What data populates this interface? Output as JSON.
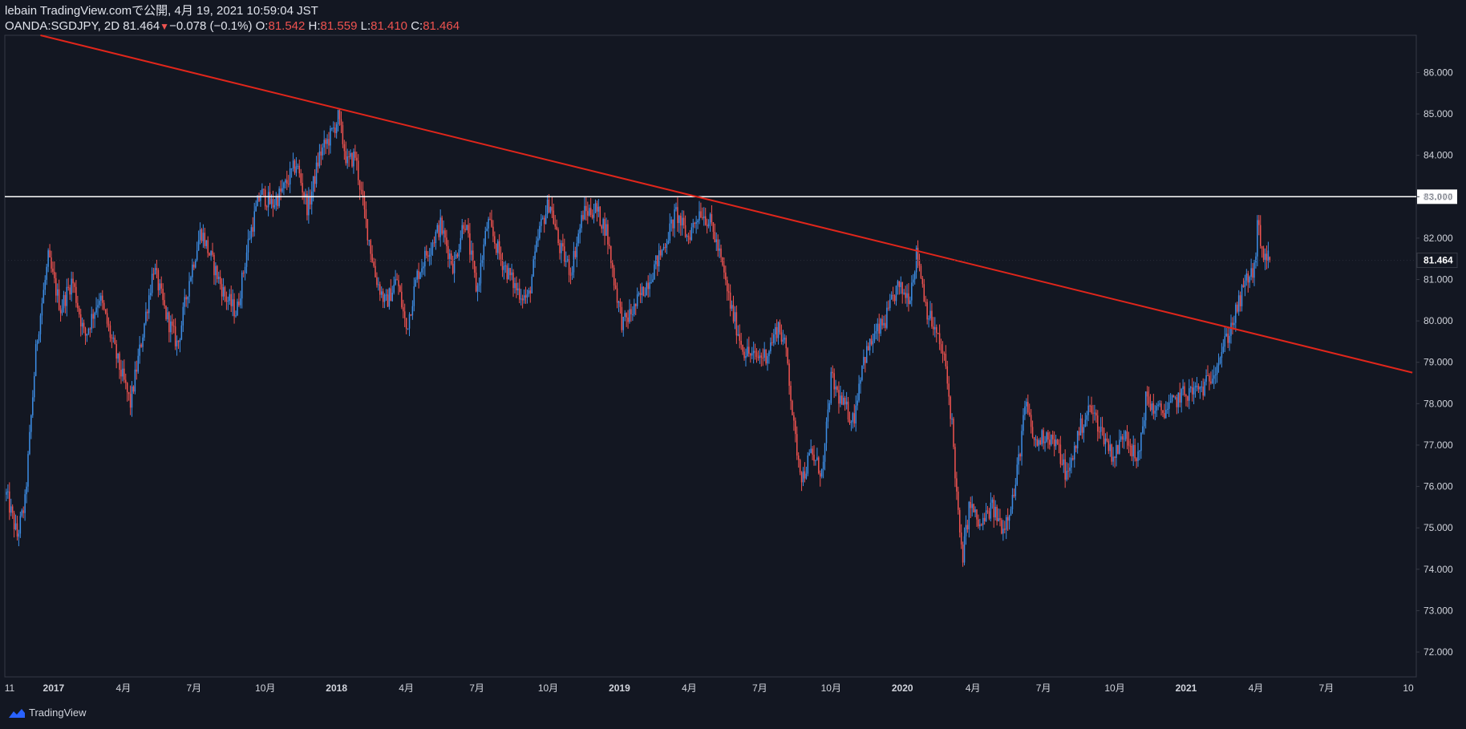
{
  "header": {
    "line1": "lebain TradingView.comで公開, 4月 19, 2021 10:59:04 JST",
    "symbol": "OANDA:SGDJPY, 2D",
    "last": "81.464",
    "change": "−0.078 (−0.1%)",
    "o_label": "O:",
    "o_value": "81.542",
    "h_label": "H:",
    "h_value": "81.559",
    "l_label": "L:",
    "l_value": "81.410",
    "c_label": "C:",
    "c_value": "81.464"
  },
  "footer": {
    "brand": "TradingView",
    "icon": "tradingview-cloud-icon"
  },
  "colors": {
    "background": "#131722",
    "up": "#2962ff",
    "up_candle": "#3d8ee6",
    "down": "#ef5350",
    "trendline": "#e0261b",
    "hline": "#ffffff",
    "axis_text": "#d1d4dc",
    "border": "#363a45"
  },
  "chart_data": {
    "type": "candlestick",
    "ylim": [
      71.4,
      86.9
    ],
    "y_ticks": [
      "86.000",
      "85.000",
      "84.000",
      "83.000",
      "82.000",
      "81.000",
      "80.000",
      "79.000",
      "78.000",
      "77.000",
      "76.000",
      "75.000",
      "74.000",
      "73.000",
      "72.000"
    ],
    "x_ticks": [
      "11",
      "2017",
      "4月",
      "7月",
      "10月",
      "2018",
      "4月",
      "7月",
      "10月",
      "2019",
      "4月",
      "7月",
      "10月",
      "2020",
      "4月",
      "7月",
      "10月",
      "2021",
      "4月",
      "7月",
      "10"
    ],
    "price_labels": [
      {
        "label": "83.000",
        "value": 83.0,
        "kind": "hline"
      },
      {
        "label": "81.464",
        "value": 81.464,
        "kind": "last"
      }
    ],
    "trendline": {
      "label": "descending trendline",
      "from": {
        "date": "2016-12-15",
        "price": 86.9
      },
      "to": {
        "date": "2021-10-20",
        "price": 78.75
      }
    },
    "hline": {
      "price": 83.0
    },
    "close_path": [
      [
        "2016-11-01",
        75.8
      ],
      [
        "2016-11-15",
        74.8
      ],
      [
        "2016-11-25",
        75.6
      ],
      [
        "2016-12-10",
        79.5
      ],
      [
        "2016-12-25",
        81.5
      ],
      [
        "2017-01-10",
        80.3
      ],
      [
        "2017-01-25",
        81.0
      ],
      [
        "2017-02-10",
        79.6
      ],
      [
        "2017-03-01",
        80.6
      ],
      [
        "2017-03-25",
        79.0
      ],
      [
        "2017-04-10",
        78.0
      ],
      [
        "2017-04-25",
        79.6
      ],
      [
        "2017-05-10",
        81.3
      ],
      [
        "2017-05-25",
        80.2
      ],
      [
        "2017-06-10",
        79.4
      ],
      [
        "2017-06-25",
        81.0
      ],
      [
        "2017-07-10",
        82.2
      ],
      [
        "2017-07-25",
        81.4
      ],
      [
        "2017-08-10",
        80.6
      ],
      [
        "2017-08-25",
        80.2
      ],
      [
        "2017-09-10",
        82.0
      ],
      [
        "2017-09-25",
        83.1
      ],
      [
        "2017-10-10",
        82.8
      ],
      [
        "2017-10-25",
        83.2
      ],
      [
        "2017-11-10",
        83.8
      ],
      [
        "2017-11-25",
        82.7
      ],
      [
        "2017-12-10",
        84.0
      ],
      [
        "2017-12-25",
        84.5
      ],
      [
        "2018-01-03",
        84.9
      ],
      [
        "2018-01-15",
        83.8
      ],
      [
        "2018-01-25",
        84.0
      ],
      [
        "2018-02-05",
        82.7
      ],
      [
        "2018-02-20",
        81.1
      ],
      [
        "2018-03-05",
        80.4
      ],
      [
        "2018-03-20",
        81.0
      ],
      [
        "2018-04-01",
        79.8
      ],
      [
        "2018-04-15",
        81.1
      ],
      [
        "2018-05-01",
        81.8
      ],
      [
        "2018-05-15",
        82.3
      ],
      [
        "2018-06-01",
        81.3
      ],
      [
        "2018-06-15",
        82.5
      ],
      [
        "2018-07-01",
        80.7
      ],
      [
        "2018-07-15",
        82.4
      ],
      [
        "2018-08-01",
        81.5
      ],
      [
        "2018-08-20",
        80.8
      ],
      [
        "2018-09-05",
        80.5
      ],
      [
        "2018-09-20",
        82.2
      ],
      [
        "2018-10-03",
        82.9
      ],
      [
        "2018-10-15",
        81.8
      ],
      [
        "2018-10-30",
        81.2
      ],
      [
        "2018-11-15",
        82.6
      ],
      [
        "2018-12-01",
        82.7
      ],
      [
        "2018-12-15",
        82.2
      ],
      [
        "2018-12-25",
        81.0
      ],
      [
        "2019-01-05",
        79.9
      ],
      [
        "2019-01-20",
        80.3
      ],
      [
        "2019-02-05",
        80.9
      ],
      [
        "2019-02-25",
        81.7
      ],
      [
        "2019-03-15",
        82.6
      ],
      [
        "2019-03-30",
        82.0
      ],
      [
        "2019-04-15",
        82.7
      ],
      [
        "2019-04-30",
        82.3
      ],
      [
        "2019-05-10",
        81.6
      ],
      [
        "2019-05-25",
        80.3
      ],
      [
        "2019-06-10",
        79.3
      ],
      [
        "2019-06-25",
        79.1
      ],
      [
        "2019-07-10",
        79.2
      ],
      [
        "2019-07-25",
        79.9
      ],
      [
        "2019-08-05",
        79.2
      ],
      [
        "2019-08-15",
        77.2
      ],
      [
        "2019-08-25",
        76.2
      ],
      [
        "2019-09-05",
        76.8
      ],
      [
        "2019-09-20",
        76.3
      ],
      [
        "2019-10-01",
        78.6
      ],
      [
        "2019-10-15",
        78.0
      ],
      [
        "2019-10-30",
        77.6
      ],
      [
        "2019-11-10",
        79.0
      ],
      [
        "2019-11-25",
        79.6
      ],
      [
        "2019-12-10",
        80.0
      ],
      [
        "2019-12-25",
        80.8
      ],
      [
        "2020-01-10",
        80.6
      ],
      [
        "2020-01-20",
        81.7
      ],
      [
        "2020-02-01",
        80.3
      ],
      [
        "2020-02-15",
        79.6
      ],
      [
        "2020-02-25",
        79.0
      ],
      [
        "2020-03-05",
        77.5
      ],
      [
        "2020-03-12",
        75.5
      ],
      [
        "2020-03-18",
        74.2
      ],
      [
        "2020-03-28",
        75.6
      ],
      [
        "2020-04-10",
        75.0
      ],
      [
        "2020-04-25",
        75.5
      ],
      [
        "2020-05-10",
        75.0
      ],
      [
        "2020-05-25",
        75.9
      ],
      [
        "2020-06-08",
        78.0
      ],
      [
        "2020-06-20",
        77.0
      ],
      [
        "2020-07-05",
        77.3
      ],
      [
        "2020-07-20",
        76.9
      ],
      [
        "2020-08-01",
        76.2
      ],
      [
        "2020-08-15",
        77.3
      ],
      [
        "2020-08-30",
        77.9
      ],
      [
        "2020-09-15",
        77.3
      ],
      [
        "2020-09-30",
        76.7
      ],
      [
        "2020-10-15",
        77.4
      ],
      [
        "2020-10-30",
        76.5
      ],
      [
        "2020-11-10",
        78.1
      ],
      [
        "2020-11-25",
        77.8
      ],
      [
        "2020-12-10",
        77.9
      ],
      [
        "2020-12-25",
        78.2
      ],
      [
        "2021-01-10",
        78.3
      ],
      [
        "2021-01-25",
        78.4
      ],
      [
        "2021-02-10",
        79.0
      ],
      [
        "2021-02-25",
        79.7
      ],
      [
        "2021-03-10",
        80.4
      ],
      [
        "2021-03-20",
        81.0
      ],
      [
        "2021-03-30",
        81.2
      ],
      [
        "2021-04-03",
        82.3
      ],
      [
        "2021-04-10",
        81.6
      ],
      [
        "2021-04-19",
        81.464
      ]
    ],
    "last_price": 81.464,
    "grid": false
  }
}
